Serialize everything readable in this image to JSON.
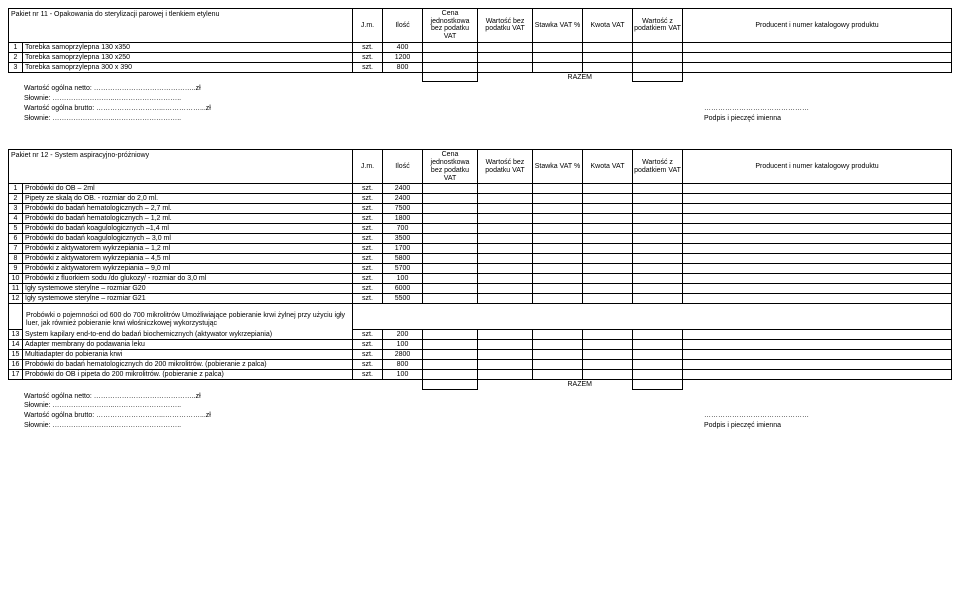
{
  "headers": {
    "jm": "J.m.",
    "ilosc": "Ilość",
    "cena_jednostkowa": "Cena jednostkowa bez podatku VAT",
    "wartosc_bez": "Wartość bez podatku VAT",
    "stawka": "Stawka VAT %",
    "kwota": "Kwota VAT",
    "wartosc_z": "Wartość z podatkiem VAT",
    "producent": "Producent i numer katalogowy produktu",
    "razem": "RAZEM"
  },
  "footer": {
    "netto": "Wartość ogólna netto: ……………………………………..zł",
    "slownie": "Słownie: ……………………...………………………..",
    "brutto": "Wartość ogólna brutto: ………………………...……………...zł",
    "ellipsis": "………………………………………",
    "podpis": "Podpis i pieczęć imienna"
  },
  "pkg11": {
    "title": "Pakiet nr 11 - Opakowania do sterylizacji parowej i tlenkiem etylenu",
    "rows": [
      {
        "n": "1",
        "name": "Torebka samoprzylepna 130 x350",
        "jm": "szt.",
        "q": "400"
      },
      {
        "n": "2",
        "name": "Torebka samoprzylepna 130 x250",
        "jm": "szt.",
        "q": "1200"
      },
      {
        "n": "3",
        "name": "Torebka samoprzylepna 300 x 390",
        "jm": "szt.",
        "q": "800"
      }
    ]
  },
  "pkg12": {
    "title": "Pakiet nr 12 - System aspiracyjno-próżniowy",
    "rows": [
      {
        "n": "1",
        "name": "Probówki do OB – 2ml",
        "jm": "szt.",
        "q": "2400"
      },
      {
        "n": "2",
        "name": "Pipety ze skalą do OB. - rozmiar do 2,0 ml.",
        "jm": "szt.",
        "q": "2400"
      },
      {
        "n": "3",
        "name": "Probówki do badań hematologicznych – 2,7 ml.",
        "jm": "szt.",
        "q": "7500"
      },
      {
        "n": "4",
        "name": "Probówki do badań hematologicznych – 1,2 ml.",
        "jm": "szt.",
        "q": "1800"
      },
      {
        "n": "5",
        "name": "Probówki do badań koagulologicznych –1,4 ml",
        "jm": "szt.",
        "q": "700"
      },
      {
        "n": "6",
        "name": "Probówki do badań koagulologicznych – 3,0 ml",
        "jm": "szt.",
        "q": "3500"
      },
      {
        "n": "7",
        "name": "Probówki z aktywatorem wykrzepiania – 1,2 ml",
        "jm": "szt.",
        "q": "1700"
      },
      {
        "n": "8",
        "name": "Probówki z aktywatorem wykrzepiania – 4,5 ml",
        "jm": "szt.",
        "q": "5800"
      },
      {
        "n": "9",
        "name": "Probówki z aktywatorem wykrzepiania – 9,0 ml",
        "jm": "szt.",
        "q": "5700"
      },
      {
        "n": "10",
        "name": "Probówki z fluorkiem sodu /do glukozy/ - rozmiar do 3,0 ml",
        "jm": "szt.",
        "q": "100"
      },
      {
        "n": "11",
        "name": "Igły systemowe sterylne – rozmiar G20",
        "jm": "szt.",
        "q": "6000"
      },
      {
        "n": "12",
        "name": "Igły systemowe sterylne – rozmiar G21",
        "jm": "szt.",
        "q": "5500"
      },
      {
        "n": "13",
        "name": "System kapilary end-to-end do badań biochemicznych (aktywator wykrzepiania)",
        "jm": "szt.",
        "q": "200",
        "note": "Probówki o pojemności od 600 do 700 mikrolitrów Umożliwiające pobieranie krwi żylnej przy użyciu igły luer, jak również pobieranie krwi włośniczkowej wykorzystując"
      },
      {
        "n": "14",
        "name": "Adapter membrany do podawania leku",
        "jm": "szt.",
        "q": "100"
      },
      {
        "n": "15",
        "name": "Multiadapter do pobierania krwi",
        "jm": "szt.",
        "q": "2800"
      },
      {
        "n": "16",
        "name": "Probówki do badań hematologicznych do 200 mikrolitrów. (pobieranie z palca)",
        "jm": "szt.",
        "q": "800"
      },
      {
        "n": "17",
        "name": "Probówki do OB i pipeta do 200 mikrolitrów. (pobieranie z palca)",
        "jm": "szt.",
        "q": "100"
      }
    ]
  }
}
